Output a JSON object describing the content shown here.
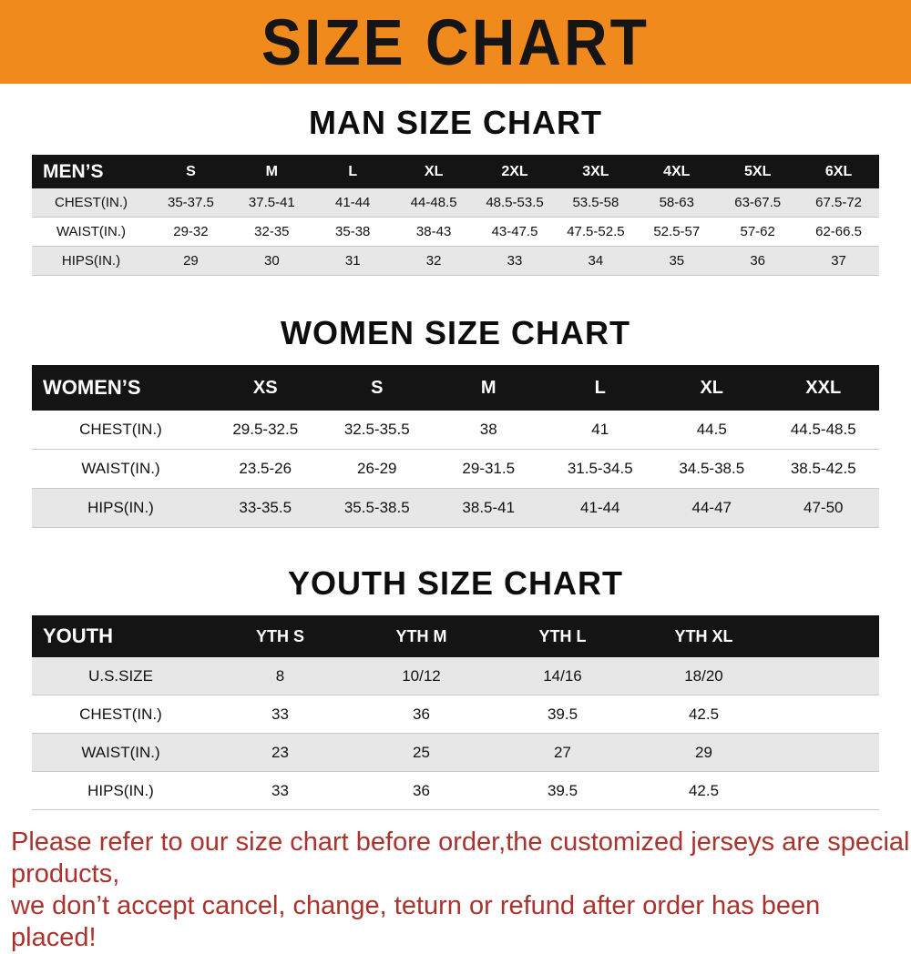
{
  "page": {
    "title": "SIZE CHART"
  },
  "sections": [
    {
      "title": "MAN SIZE CHART"
    },
    {
      "title": "WOMEN SIZE CHART"
    },
    {
      "title": "YOUTH SIZE CHART"
    }
  ],
  "tables": [
    {
      "id": "mens",
      "header_label": "MEN’S",
      "columns": [
        "S",
        "M",
        "L",
        "XL",
        "2XL",
        "3XL",
        "4XL",
        "5XL",
        "6XL"
      ],
      "rows": [
        {
          "label": "CHEST(IN.)",
          "values": [
            "35-37.5",
            "37.5-41",
            "41-44",
            "44-48.5",
            "48.5-53.5",
            "53.5-58",
            "58-63",
            "63-67.5",
            "67.5-72"
          ]
        },
        {
          "label": "WAIST(IN.)",
          "values": [
            "29-32",
            "32-35",
            "35-38",
            "38-43",
            "43-47.5",
            "47.5-52.5",
            "52.5-57",
            "57-62",
            "62-66.5"
          ]
        },
        {
          "label": "HIPS(IN.)",
          "values": [
            "29",
            "30",
            "31",
            "32",
            "33",
            "34",
            "35",
            "36",
            "37"
          ]
        }
      ]
    },
    {
      "id": "womens",
      "header_label": "WOMEN’S",
      "columns": [
        "XS",
        "S",
        "M",
        "L",
        "XL",
        "XXL"
      ],
      "rows": [
        {
          "label": "CHEST(IN.)",
          "values": [
            "29.5-32.5",
            "32.5-35.5",
            "38",
            "41",
            "44.5",
            "44.5-48.5"
          ]
        },
        {
          "label": "WAIST(IN.)",
          "values": [
            "23.5-26",
            "26-29",
            "29-31.5",
            "31.5-34.5",
            "34.5-38.5",
            "38.5-42.5"
          ]
        },
        {
          "label": "HIPS(IN.)",
          "values": [
            "33-35.5",
            "35.5-38.5",
            "38.5-41",
            "41-44",
            "44-47",
            "47-50"
          ]
        }
      ]
    },
    {
      "id": "youth",
      "header_label": "YOUTH",
      "columns": [
        "YTH S",
        "YTH M",
        "YTH L",
        "YTH XL"
      ],
      "rows": [
        {
          "label": "U.S.SIZE",
          "values": [
            "8",
            "10/12",
            "14/16",
            "18/20"
          ]
        },
        {
          "label": "CHEST(IN.)",
          "values": [
            "33",
            "36",
            "39.5",
            "42.5"
          ]
        },
        {
          "label": "WAIST(IN.)",
          "values": [
            "23",
            "25",
            "27",
            "29"
          ]
        },
        {
          "label": "HIPS(IN.)",
          "values": [
            "33",
            "36",
            "39.5",
            "42.5"
          ]
        }
      ]
    }
  ],
  "note": {
    "line1": "Please refer to our size chart before order,the customized jerseys are special products,",
    "line2": "we don’t accept cancel, change, teturn or refund after order has been placed!"
  },
  "colors": {
    "banner-orange": "#f18a1d",
    "header-black": "#141414",
    "row-gray": "#e7e7e7",
    "note-red": "#ab332d"
  }
}
